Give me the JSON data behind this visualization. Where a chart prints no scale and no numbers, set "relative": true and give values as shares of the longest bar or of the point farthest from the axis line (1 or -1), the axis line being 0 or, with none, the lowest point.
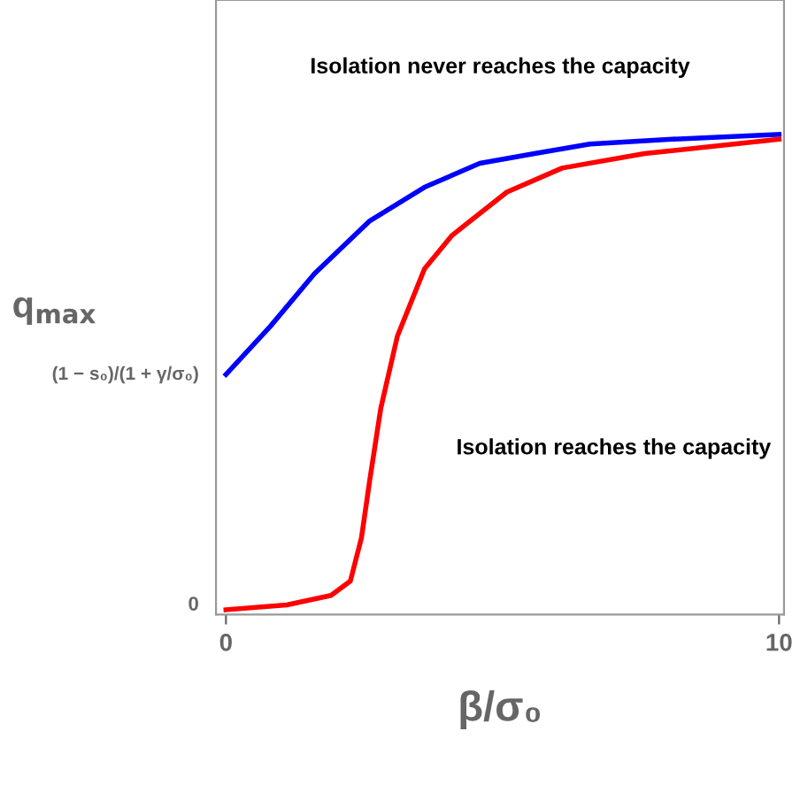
{
  "chart_data": {
    "type": "line",
    "relative": true,
    "xlabel": "β/σ₀",
    "ylabel": "q$_{max}$",
    "xlim": [
      -0.18,
      10.09
    ],
    "xticks": [
      0,
      10
    ],
    "grid": false,
    "legend": false,
    "annotations": [
      "Isolation never reaches the capacity",
      "Isolation reaches the capacity",
      "0",
      "(1 − s₀)/(1 + γ/σ₀)"
    ],
    "series": [
      {
        "color": "#0000ff",
        "x": [
          0,
          0.8,
          1.6,
          2.6,
          3.59,
          4.59,
          5.58,
          6.58,
          8.07,
          10
        ],
        "values": [
          0.5,
          0.6,
          0.71,
          0.82,
          0.89,
          0.94,
          0.96,
          0.98,
          0.99,
          1.0
        ]
      },
      {
        "color": "#ff0000",
        "x": [
          0,
          1.1,
          1.9,
          2.25,
          2.45,
          2.6,
          2.8,
          3.1,
          3.59,
          4.09,
          5.08,
          6.08,
          7.57,
          10
        ],
        "values": [
          0.01,
          0.02,
          0.04,
          0.07,
          0.16,
          0.28,
          0.43,
          0.58,
          0.72,
          0.79,
          0.88,
          0.93,
          0.96,
          0.99
        ]
      }
    ]
  }
}
